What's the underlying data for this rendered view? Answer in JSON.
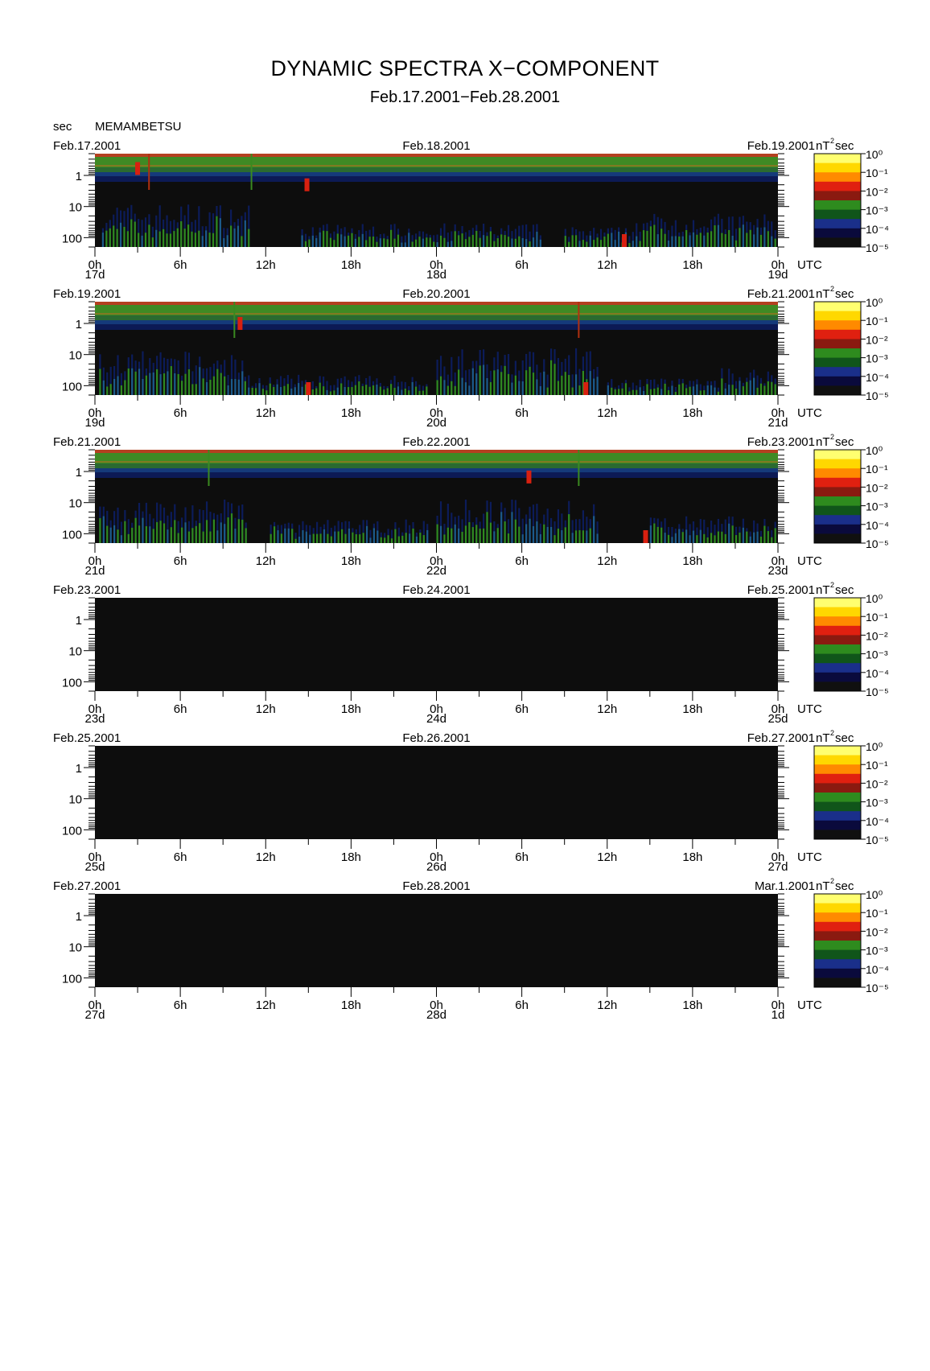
{
  "title": "DYNAMIC SPECTRA X−COMPONENT",
  "subtitle": "Feb.17.2001−Feb.28.2001",
  "y_unit": "sec",
  "station": "MEMAMBETSU",
  "x_unit": "UTC",
  "colorbar_unit": "nT²sec",
  "hour_ticks": [
    "0h",
    "6h",
    "12h",
    "18h",
    "0h",
    "6h",
    "12h",
    "18h",
    "0h"
  ],
  "colors": {
    "background": "#ffffff",
    "plot_background": "#0d0d0d",
    "scale": [
      "#101010",
      "#0a0a3c",
      "#1a2f8a",
      "#10551a",
      "#2e8b1e",
      "#8a1a10",
      "#e02010",
      "#ff8a00",
      "#ffd800",
      "#ffff70"
    ]
  },
  "chart_data": [
    {
      "type": "heatmap",
      "start_date": "Feb.17.2001",
      "mid_date": "Feb.18.2001",
      "end_date": "Feb.19.2001",
      "day_labels": [
        "17d",
        "18d",
        "19d"
      ],
      "xlabel": "UTC",
      "ylabel": "sec",
      "x_range_hours": [
        0,
        48
      ],
      "y_ticks": [
        "1",
        "10",
        "100"
      ],
      "y_scale": "log",
      "y_range_sec": [
        0.2,
        200
      ],
      "colorbar_ticks": [
        "10⁰",
        "10⁻¹",
        "10⁻²",
        "10⁻³",
        "10⁻⁴",
        "10⁻⁵"
      ],
      "data_present": true,
      "activity": [
        [
          0.5,
          10.8,
          0.65
        ],
        [
          14.5,
          24,
          0.35
        ],
        [
          24,
          31.5,
          0.35
        ],
        [
          33,
          38,
          0.3
        ],
        [
          38,
          47.9,
          0.5
        ]
      ],
      "hotspots": [
        [
          3.0,
          0.6
        ],
        [
          14.9,
          2.0
        ],
        [
          37.2,
          200
        ]
      ],
      "spikes": [
        [
          3.8,
          "#b03010"
        ],
        [
          11.0,
          "#3a8a20"
        ]
      ]
    },
    {
      "type": "heatmap",
      "start_date": "Feb.19.2001",
      "mid_date": "Feb.20.2001",
      "end_date": "Feb.21.2001",
      "day_labels": [
        "19d",
        "20d",
        "21d"
      ],
      "xlabel": "UTC",
      "ylabel": "sec",
      "x_range_hours": [
        0,
        48
      ],
      "y_ticks": [
        "1",
        "10",
        "100"
      ],
      "y_scale": "log",
      "y_range_sec": [
        0.2,
        200
      ],
      "colorbar_ticks": [
        "10⁰",
        "10⁻¹",
        "10⁻²",
        "10⁻³",
        "10⁻⁴",
        "10⁻⁵"
      ],
      "data_present": true,
      "activity": [
        [
          0.3,
          10.5,
          0.65
        ],
        [
          10.5,
          23.5,
          0.3
        ],
        [
          24,
          35.5,
          0.7
        ],
        [
          36,
          44,
          0.25
        ],
        [
          44,
          48,
          0.4
        ]
      ],
      "hotspots": [
        [
          15.0,
          200
        ],
        [
          10.2,
          1.0
        ],
        [
          34.5,
          200
        ]
      ],
      "spikes": [
        [
          9.8,
          "#3a8a20"
        ],
        [
          34.0,
          "#b03010"
        ]
      ]
    },
    {
      "type": "heatmap",
      "start_date": "Feb.21.2001",
      "mid_date": "Feb.22.2001",
      "end_date": "Feb.23.2001",
      "day_labels": [
        "21d",
        "22d",
        "23d"
      ],
      "xlabel": "UTC",
      "ylabel": "sec",
      "x_range_hours": [
        0,
        48
      ],
      "y_ticks": [
        "1",
        "10",
        "100"
      ],
      "y_scale": "log",
      "y_range_sec": [
        0.2,
        200
      ],
      "colorbar_ticks": [
        "10⁰",
        "10⁻¹",
        "10⁻²",
        "10⁻³",
        "10⁻⁴",
        "10⁻⁵"
      ],
      "data_present": true,
      "activity": [
        [
          0.3,
          10.8,
          0.65
        ],
        [
          12.3,
          23.5,
          0.35
        ],
        [
          24,
          35.5,
          0.65
        ],
        [
          39,
          48,
          0.4
        ]
      ],
      "hotspots": [
        [
          38.7,
          200
        ],
        [
          30.5,
          1.5
        ]
      ],
      "spikes": [
        [
          8.0,
          "#3a8a20"
        ],
        [
          34.0,
          "#3a8a20"
        ]
      ]
    },
    {
      "type": "heatmap",
      "start_date": "Feb.23.2001",
      "mid_date": "Feb.24.2001",
      "end_date": "Feb.25.2001",
      "day_labels": [
        "23d",
        "24d",
        "25d"
      ],
      "xlabel": "UTC",
      "ylabel": "sec",
      "x_range_hours": [
        0,
        48
      ],
      "y_ticks": [
        "1",
        "10",
        "100"
      ],
      "y_scale": "log",
      "y_range_sec": [
        0.2,
        200
      ],
      "colorbar_ticks": [
        "10⁰",
        "10⁻¹",
        "10⁻²",
        "10⁻³",
        "10⁻⁴",
        "10⁻⁵"
      ],
      "data_present": false,
      "activity": [],
      "hotspots": [],
      "spikes": []
    },
    {
      "type": "heatmap",
      "start_date": "Feb.25.2001",
      "mid_date": "Feb.26.2001",
      "end_date": "Feb.27.2001",
      "day_labels": [
        "25d",
        "26d",
        "27d"
      ],
      "xlabel": "UTC",
      "ylabel": "sec",
      "x_range_hours": [
        0,
        48
      ],
      "y_ticks": [
        "1",
        "10",
        "100"
      ],
      "y_scale": "log",
      "y_range_sec": [
        0.2,
        200
      ],
      "colorbar_ticks": [
        "10⁰",
        "10⁻¹",
        "10⁻²",
        "10⁻³",
        "10⁻⁴",
        "10⁻⁵"
      ],
      "data_present": false,
      "activity": [],
      "hotspots": [],
      "spikes": []
    },
    {
      "type": "heatmap",
      "start_date": "Feb.27.2001",
      "mid_date": "Feb.28.2001",
      "end_date": "Mar.1.2001",
      "day_labels": [
        "27d",
        "28d",
        "1d"
      ],
      "xlabel": "UTC",
      "ylabel": "sec",
      "x_range_hours": [
        0,
        48
      ],
      "y_ticks": [
        "1",
        "10",
        "100"
      ],
      "y_scale": "log",
      "y_range_sec": [
        0.2,
        200
      ],
      "colorbar_ticks": [
        "10⁰",
        "10⁻¹",
        "10⁻²",
        "10⁻³",
        "10⁻⁴",
        "10⁻⁵"
      ],
      "data_present": false,
      "activity": [],
      "hotspots": [],
      "spikes": []
    }
  ]
}
